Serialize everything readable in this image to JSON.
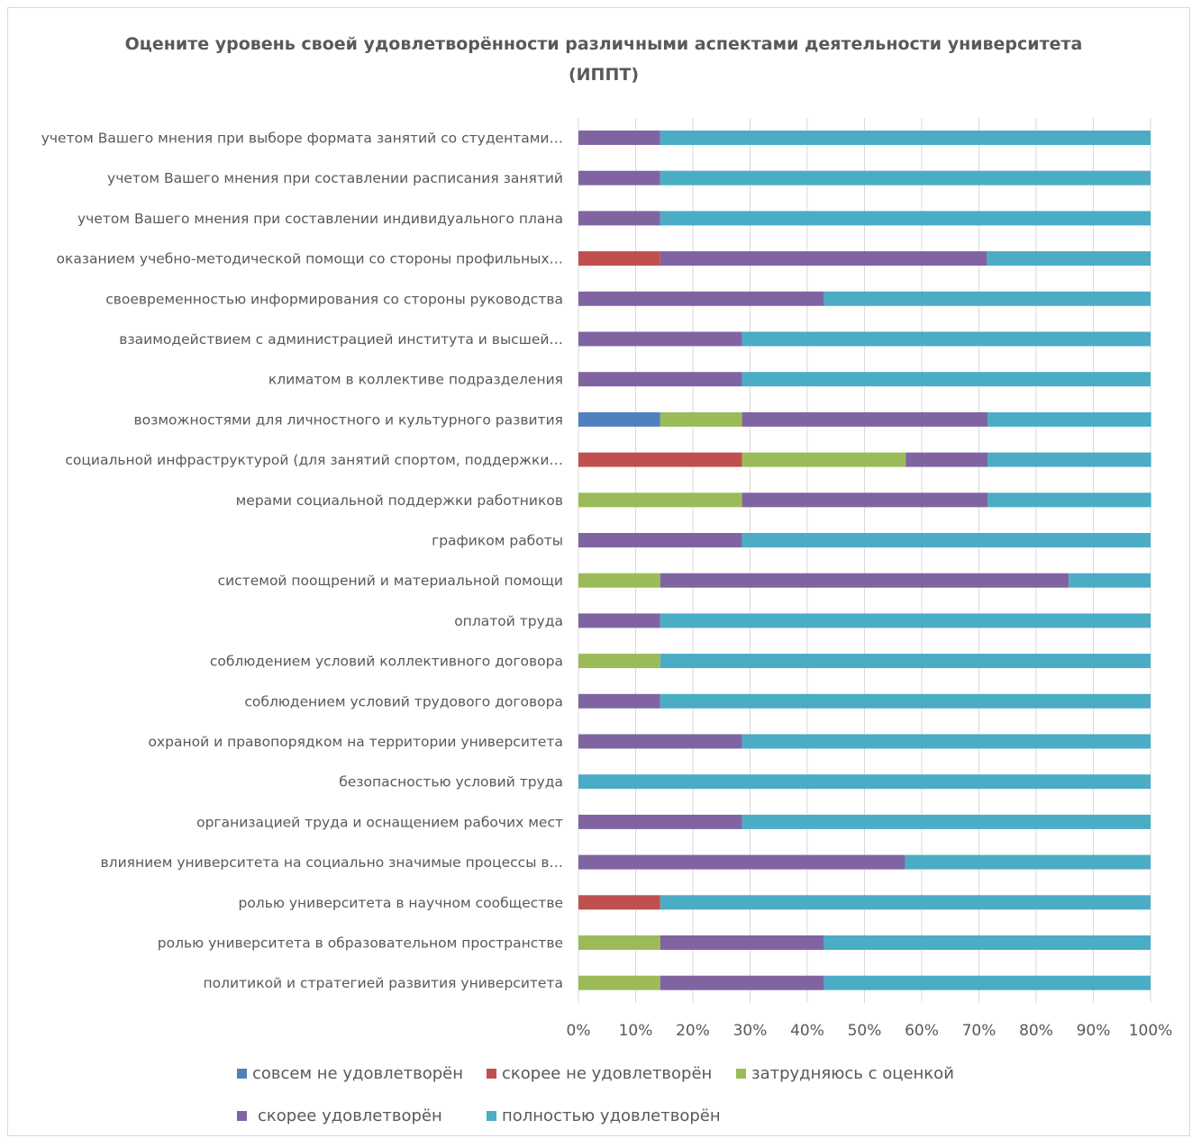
{
  "chart_data": {
    "type": "bar",
    "orientation": "horizontal",
    "stacked": "percent",
    "title": "Оцените уровень своей удовлетворённости различными аспектами деятельности университета (ИППТ)",
    "xlim": [
      0,
      100
    ],
    "x_ticks": [
      "0%",
      "10%",
      "20%",
      "30%",
      "40%",
      "50%",
      "60%",
      "70%",
      "80%",
      "90%",
      "100%"
    ],
    "grid": true,
    "legend_position": "bottom",
    "categories": [
      "учетом Вашего мнения при выборе формата занятий со студентами…",
      "учетом Вашего мнения при составлении расписания занятий",
      "учетом Вашего мнения при составлении индивидуального плана",
      "оказанием учебно-методической помощи со стороны профильных…",
      "своевременностью информирования со стороны руководства",
      "взаимодействием с администрацией института и высшей…",
      "климатом в коллективе подразделения",
      "возможностями для личностного и культурного развития",
      "социальной инфраструктурой (для занятий спортом, поддержки…",
      "мерами социальной поддержки работников",
      "графиком работы",
      "системой поощрений и материальной помощи",
      "оплатой труда",
      "соблюдением условий коллективного договора",
      "соблюдением условий трудового договора",
      "охраной и правопорядком на территории университета",
      "безопасностью условий труда",
      "организацией труда и оснащением рабочих мест",
      "влиянием университета на социально значимые процессы в…",
      "ролью университета в научном сообществе",
      "ролью университета в образовательном пространстве",
      "политикой и стратегией развития университета"
    ],
    "series": [
      {
        "name": "совсем не удовлетворён",
        "color": "#4f81bd",
        "values": [
          0,
          0,
          0,
          0,
          0,
          0,
          0,
          14.3,
          0,
          0,
          0,
          0,
          0,
          0,
          0,
          0,
          0,
          0,
          0,
          0,
          0,
          0
        ]
      },
      {
        "name": "скорее не удовлетворён",
        "color": "#c0504d",
        "values": [
          0,
          0,
          0,
          14.3,
          0,
          0,
          0,
          0,
          28.6,
          0,
          0,
          0,
          0,
          0,
          0,
          0,
          0,
          0,
          0,
          14.3,
          0,
          0
        ]
      },
      {
        "name": "затрудняюсь с оценкой",
        "color": "#9bbb59",
        "values": [
          0,
          0,
          0,
          0,
          0,
          0,
          0,
          14.3,
          28.6,
          28.6,
          0,
          14.3,
          0,
          14.3,
          0,
          0,
          0,
          0,
          0,
          0,
          14.3,
          14.3
        ]
      },
      {
        "name": "скорее удовлетворён",
        "color": "#8064a2",
        "values": [
          14.3,
          14.3,
          14.3,
          57.1,
          42.9,
          28.6,
          28.6,
          42.9,
          14.3,
          42.9,
          28.6,
          71.4,
          14.3,
          0,
          14.3,
          28.6,
          0,
          28.6,
          57.1,
          0,
          28.6,
          28.6
        ]
      },
      {
        "name": "полностью удовлетворён",
        "color": "#4bacc6",
        "values": [
          85.7,
          85.7,
          85.7,
          28.6,
          57.1,
          71.4,
          71.4,
          28.6,
          28.6,
          28.6,
          71.4,
          14.3,
          85.7,
          85.7,
          85.7,
          71.4,
          100,
          71.4,
          42.9,
          85.7,
          57.1,
          57.1
        ]
      }
    ]
  }
}
